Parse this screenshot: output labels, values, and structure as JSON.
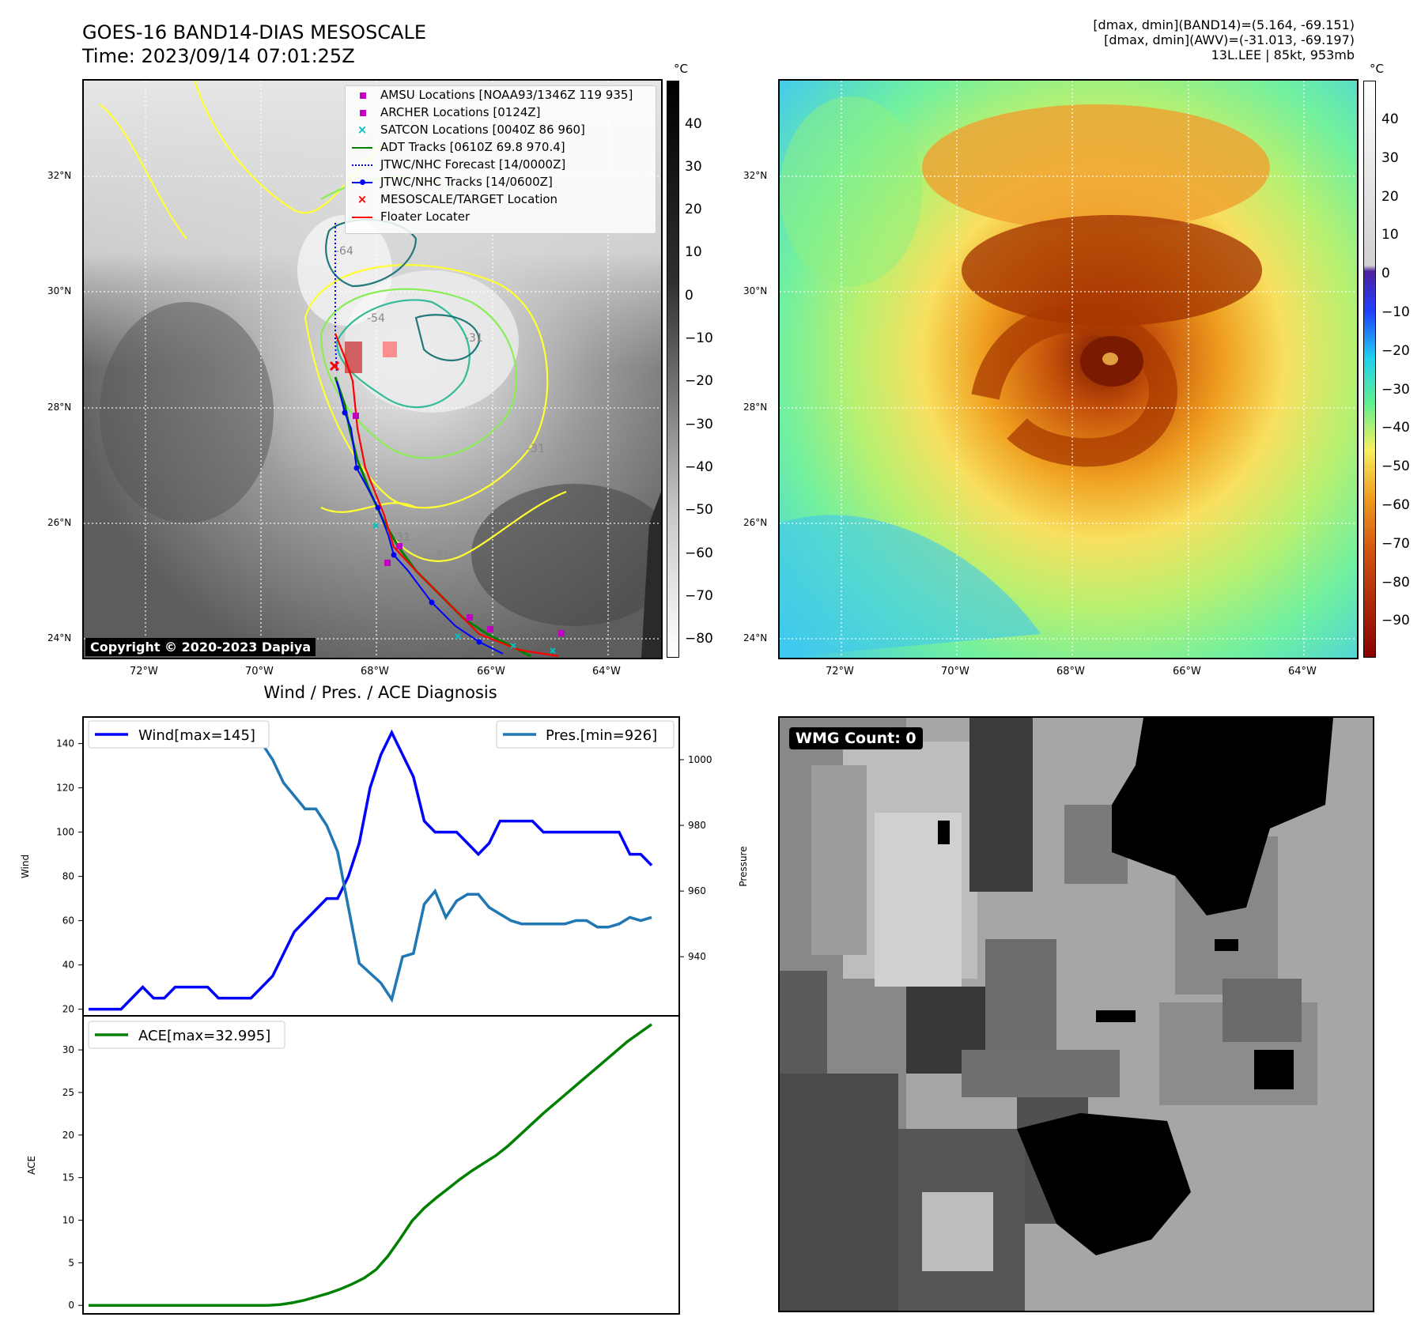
{
  "header": {
    "title_line1": "GOES-16 BAND14-DIAS MESOSCALE",
    "title_line2": "Time: 2023/09/14 07:01:25Z",
    "info_line1": "[dmax, dmin](BAND14)=(5.164, -69.151)",
    "info_line2": "[dmax, dmin](AWV)=(-31.013, -69.197)",
    "info_line3": "13L.LEE | 85kt, 953mb"
  },
  "map": {
    "lat_labels": [
      "32°N",
      "30°N",
      "28°N",
      "26°N",
      "24°N"
    ],
    "lon_labels": [
      "72°W",
      "70°W",
      "68°W",
      "66°W",
      "64°W"
    ],
    "contour_labels": [
      "-64",
      "-54",
      "-31",
      "-31",
      "-31",
      "-31"
    ],
    "copyright": "Copyright © 2020-2023 Dapiya",
    "colorbar_unit": "°C",
    "gray_colorbar_ticks": [
      "40",
      "30",
      "20",
      "10",
      "0",
      "−10",
      "−20",
      "−30",
      "−40",
      "−50",
      "−60",
      "−70",
      "−80"
    ],
    "color_colorbar_ticks": [
      "40",
      "30",
      "20",
      "10",
      "0",
      "−10",
      "−20",
      "−30",
      "−40",
      "−50",
      "−60",
      "−70",
      "−80",
      "−90"
    ],
    "legend": [
      {
        "label": "AMSU Locations [NOAA93/1346Z 119 935]",
        "marker": "square",
        "color": "#c000c0"
      },
      {
        "label": "ARCHER Locations [0124Z]",
        "marker": "square",
        "color": "#c000c0"
      },
      {
        "label": "SATCON Locations [0040Z 86 960]",
        "marker": "x",
        "color": "#00c0c0"
      },
      {
        "label": "ADT Tracks [0610Z 69.8 970.4]",
        "marker": "line",
        "color": "#008000"
      },
      {
        "label": "JTWC/NHC Forecast [14/0000Z]",
        "marker": "dotted",
        "color": "#0000ff"
      },
      {
        "label": "JTWC/NHC Tracks [14/0600Z]",
        "marker": "line-dot",
        "color": "#0000ff"
      },
      {
        "label": "MESOSCALE/TARGET Location",
        "marker": "x",
        "color": "#ff0000"
      },
      {
        "label": "Floater Locater",
        "marker": "line",
        "color": "#ff0000"
      }
    ]
  },
  "diagnosis": {
    "title": "Wind / Pres. / ACE Diagnosis",
    "wind_legend": "Wind[max=145]",
    "pres_legend": "Pres.[min=926]",
    "ace_legend": "ACE[max=32.995]",
    "wind_ylabel": "Wind",
    "pres_ylabel": "Pressure",
    "ace_ylabel": "ACE",
    "wind_color": "#0000ff",
    "pres_color": "#1f77b4",
    "ace_color": "#008000"
  },
  "wmg": {
    "label": "WMG Count: 0"
  },
  "chart_data": [
    {
      "type": "line",
      "title": "Wind / Pres. / ACE Diagnosis",
      "series": [
        {
          "name": "Wind[max=145]",
          "axis": "left",
          "ylim": [
            17,
            152
          ],
          "values": [
            20,
            20,
            20,
            20,
            25,
            30,
            25,
            25,
            30,
            30,
            30,
            30,
            25,
            25,
            25,
            25,
            30,
            35,
            45,
            55,
            60,
            65,
            70,
            70,
            80,
            95,
            120,
            135,
            145,
            135,
            125,
            105,
            100,
            100,
            100,
            95,
            90,
            95,
            105,
            105,
            105,
            105,
            100,
            100,
            100,
            100,
            100,
            100,
            100,
            100,
            90,
            90,
            85
          ]
        },
        {
          "name": "Pres.[min=926]",
          "axis": "right",
          "ylim": [
            922,
            1013
          ],
          "values": [
            1011,
            1011,
            1011,
            1011,
            1010,
            1010,
            1010,
            1010,
            1010,
            1010,
            1010,
            1010,
            1011,
            1011,
            1010,
            1008,
            1005,
            1000,
            993,
            989,
            985,
            985,
            980,
            972,
            955,
            938,
            935,
            932,
            927,
            940,
            941,
            956,
            960,
            952,
            957,
            959,
            959,
            955,
            953,
            951,
            950,
            950,
            950,
            950,
            950,
            951,
            951,
            949,
            949,
            950,
            952,
            951,
            952
          ]
        },
        {
          "name": "ACE[max=32.995]",
          "axis": "ace",
          "ylim": [
            -1,
            34
          ],
          "values": [
            0,
            0,
            0,
            0,
            0,
            0,
            0,
            0,
            0,
            0,
            0,
            0,
            0,
            0,
            0,
            0,
            0.1,
            0.3,
            0.6,
            1.0,
            1.4,
            1.9,
            2.5,
            3.2,
            4.2,
            5.8,
            7.8,
            9.9,
            11.4,
            12.6,
            13.7,
            14.8,
            15.8,
            16.7,
            17.6,
            18.7,
            20.0,
            21.3,
            22.6,
            23.8,
            25.0,
            26.2,
            27.4,
            28.6,
            29.8,
            31.0,
            32.0,
            33.0
          ]
        }
      ],
      "wind_ticks": [
        20,
        40,
        60,
        80,
        100,
        120,
        140
      ],
      "pres_ticks": [
        940,
        960,
        980,
        1000
      ],
      "ace_ticks": [
        0,
        5,
        10,
        15,
        20,
        25,
        30
      ]
    }
  ]
}
